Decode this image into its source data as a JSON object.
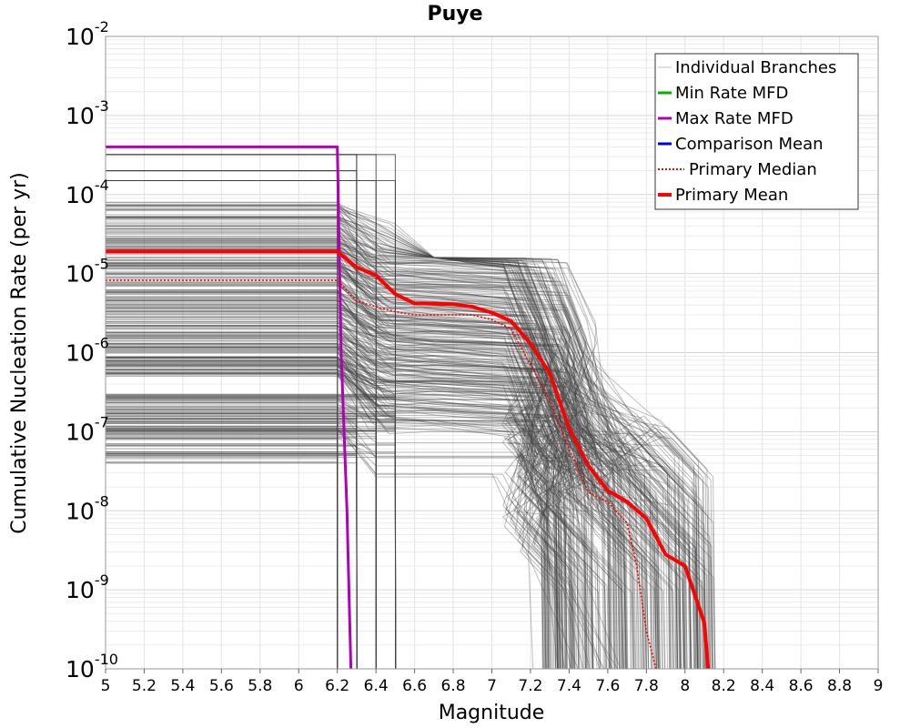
{
  "chart_data": {
    "type": "line",
    "title": "Puye",
    "xlabel": "Magnitude",
    "ylabel": "Cumulative Nucleation Rate (per yr)",
    "xlim": [
      5,
      9
    ],
    "ylim": [
      1e-10,
      0.01
    ],
    "yscale": "log",
    "grid": true,
    "legend_position": "top-right",
    "x_ticks": [
      "5",
      "5.2",
      "5.4",
      "5.6",
      "5.8",
      "6",
      "6.2",
      "6.4",
      "6.6",
      "6.8",
      "7",
      "7.2",
      "7.4",
      "7.6",
      "7.8",
      "8",
      "8.2",
      "8.4",
      "8.6",
      "8.8",
      "9"
    ],
    "y_ticks": [
      {
        "base": "10",
        "exp": "-10",
        "value": 1e-10
      },
      {
        "base": "10",
        "exp": "-9",
        "value": 1e-09
      },
      {
        "base": "10",
        "exp": "-8",
        "value": 1e-08
      },
      {
        "base": "10",
        "exp": "-7",
        "value": 1e-07
      },
      {
        "base": "10",
        "exp": "-6",
        "value": 1e-06
      },
      {
        "base": "10",
        "exp": "-5",
        "value": 1e-05
      },
      {
        "base": "10",
        "exp": "-4",
        "value": 0.0001
      },
      {
        "base": "10",
        "exp": "-3",
        "value": 0.001
      },
      {
        "base": "10",
        "exp": "-2",
        "value": 0.01
      }
    ],
    "legend": [
      {
        "label": "Individual Branches",
        "color": "#bfbfbf",
        "style": "solid"
      },
      {
        "label": "Min Rate MFD",
        "color": "#00b000",
        "style": "solid"
      },
      {
        "label": "Max Rate MFD",
        "color": "#b000b8",
        "style": "solid"
      },
      {
        "label": "Comparison Mean",
        "color": "#0000e0",
        "style": "solid"
      },
      {
        "label": "Primary Median",
        "color": "#ff0000",
        "style": "dotted"
      },
      {
        "label": "Primary Mean",
        "color": "#ff0000",
        "style": "solid"
      }
    ],
    "series": [
      {
        "name": "Max Rate MFD",
        "color": "#b000b8",
        "x": [
          5.0,
          6.2,
          6.22,
          6.25,
          6.27
        ],
        "y": [
          0.0004,
          0.0004,
          1e-06,
          1e-08,
          1e-10
        ]
      },
      {
        "name": "Primary Mean",
        "color": "#ff0000",
        "x": [
          5.0,
          6.2,
          6.3,
          6.4,
          6.5,
          6.6,
          6.8,
          6.9,
          7.0,
          7.1,
          7.2,
          7.3,
          7.4,
          7.5,
          7.6,
          7.7,
          7.8,
          7.9,
          8.0,
          8.1,
          8.12
        ],
        "y": [
          1.9e-05,
          1.9e-05,
          1.2e-05,
          9.5e-06,
          5.5e-06,
          4.2e-06,
          4.1e-06,
          3.8e-06,
          3.2e-06,
          2.5e-06,
          1.3e-06,
          5.5e-07,
          1.1e-07,
          3.7e-08,
          1.8e-08,
          1.3e-08,
          8e-09,
          2.8e-09,
          2e-09,
          3.8e-10,
          1e-10
        ]
      },
      {
        "name": "Primary Median",
        "color": "#ff0000",
        "x": [
          5.0,
          6.2,
          6.3,
          6.4,
          6.5,
          6.6,
          6.8,
          6.9,
          7.0,
          7.1,
          7.2,
          7.3,
          7.4,
          7.5,
          7.6,
          7.7,
          7.75,
          7.8,
          7.85
        ],
        "y": [
          8.2e-06,
          8.2e-06,
          4.5e-06,
          3.8e-06,
          3.3e-06,
          3e-06,
          3e-06,
          3e-06,
          2.6e-06,
          2e-06,
          7e-07,
          2.5e-07,
          6e-08,
          1.7e-08,
          1.3e-08,
          7e-09,
          2e-09,
          3e-10,
          1e-10
        ]
      }
    ],
    "branches_summary": {
      "name": "Individual Branches",
      "count": 400,
      "low_rate_band": [
        4e-08,
        3e-07
      ],
      "high_rate_band": [
        5e-07,
        8e-05
      ],
      "top_rate_levels": [
        0.00015,
        0.0002,
        0.00026,
        0.00032
      ],
      "drop_magnitudes": [
        6.2,
        6.3,
        6.4,
        6.5,
        7.1,
        7.2,
        7.3,
        7.4,
        7.5,
        7.6,
        7.7,
        7.8,
        7.9,
        8.0,
        8.1
      ]
    }
  }
}
